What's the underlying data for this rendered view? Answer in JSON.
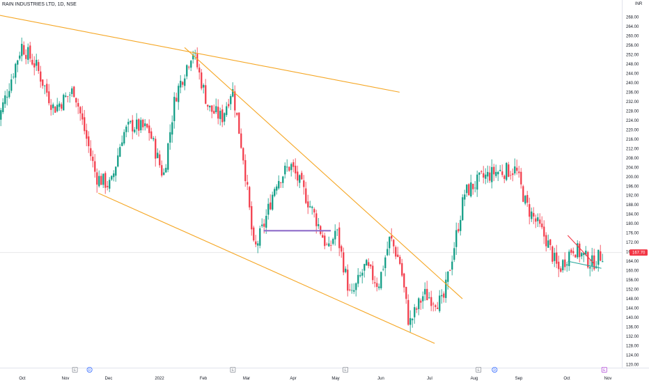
{
  "header": {
    "title": "RAIN INDUSTRIES LTD, 1D, NSE"
  },
  "currency_label": "INR",
  "colors": {
    "up": "#089981",
    "down": "#f23645",
    "trendline": "#f5a623",
    "support": "#8e6cc9",
    "axis_text": "#131722",
    "price_line": "#f23645",
    "marker_border": "#8a8f98",
    "dividend_marker": "#2962ff",
    "current_earnings_marker": "#b04ad6"
  },
  "chart_data": {
    "type": "candlestick",
    "title": "RAIN INDUSTRIES LTD, 1D, NSE",
    "ylim": [
      118,
      272
    ],
    "y_ticks": [
      120,
      124,
      128,
      132,
      136,
      140,
      144,
      148,
      152,
      156,
      160,
      164,
      168,
      172,
      176,
      180,
      184,
      188,
      192,
      196,
      200,
      204,
      208,
      212,
      216,
      220,
      224,
      228,
      232,
      236,
      240,
      244,
      248,
      252,
      256,
      260,
      264,
      268
    ],
    "x_labels": [
      "Oct",
      "Nov",
      "Dec",
      "2022",
      "Feb",
      "Mar",
      "Apr",
      "May",
      "Jun",
      "Jul",
      "Aug",
      "Sep",
      "Oct",
      "Nov"
    ],
    "current_price": 167.7,
    "current_price_label": "167.70",
    "series": [
      {
        "x": "2021-09-13",
        "y": 222
      },
      {
        "x": "2021-09-30",
        "y": 256
      },
      {
        "x": "2021-10-10",
        "y": 247
      },
      {
        "x": "2021-10-22",
        "y": 229
      },
      {
        "x": "2021-11-05",
        "y": 237
      },
      {
        "x": "2021-11-20",
        "y": 200
      },
      {
        "x": "2021-11-30",
        "y": 196
      },
      {
        "x": "2021-12-08",
        "y": 218
      },
      {
        "x": "2021-12-14",
        "y": 222
      },
      {
        "x": "2021-12-26",
        "y": 220
      },
      {
        "x": "2022-01-05",
        "y": 200
      },
      {
        "x": "2022-01-13",
        "y": 234
      },
      {
        "x": "2022-01-25",
        "y": 254
      },
      {
        "x": "2022-02-05",
        "y": 229
      },
      {
        "x": "2022-02-14",
        "y": 225
      },
      {
        "x": "2022-02-21",
        "y": 238
      },
      {
        "x": "2022-03-01",
        "y": 207
      },
      {
        "x": "2022-03-08",
        "y": 168
      },
      {
        "x": "2022-03-15",
        "y": 180
      },
      {
        "x": "2022-03-23",
        "y": 198
      },
      {
        "x": "2022-04-02",
        "y": 205
      },
      {
        "x": "2022-04-10",
        "y": 195
      },
      {
        "x": "2022-04-20",
        "y": 181
      },
      {
        "x": "2022-04-28",
        "y": 168
      },
      {
        "x": "2022-05-03",
        "y": 178
      },
      {
        "x": "2022-05-13",
        "y": 148
      },
      {
        "x": "2022-05-23",
        "y": 162
      },
      {
        "x": "2022-06-01",
        "y": 154
      },
      {
        "x": "2022-06-09",
        "y": 174
      },
      {
        "x": "2022-06-16",
        "y": 163
      },
      {
        "x": "2022-06-22",
        "y": 137
      },
      {
        "x": "2022-07-02",
        "y": 150
      },
      {
        "x": "2022-07-15",
        "y": 146
      },
      {
        "x": "2022-07-30",
        "y": 193
      },
      {
        "x": "2022-08-10",
        "y": 199
      },
      {
        "x": "2022-08-20",
        "y": 202
      },
      {
        "x": "2022-09-03",
        "y": 203
      },
      {
        "x": "2022-09-10",
        "y": 188
      },
      {
        "x": "2022-09-24",
        "y": 173
      },
      {
        "x": "2022-10-02",
        "y": 160
      },
      {
        "x": "2022-10-12",
        "y": 170
      },
      {
        "x": "2022-10-25",
        "y": 163
      },
      {
        "x": "2022-11-02",
        "y": 167.7
      }
    ],
    "trendlines": [
      {
        "name": "upper-channel",
        "from": {
          "x": "2021-09-05",
          "y": 270
        },
        "to": {
          "x": "2022-06-16",
          "y": 236
        }
      },
      {
        "name": "lower-channel",
        "from": {
          "x": "2021-11-22",
          "y": 193
        },
        "to": {
          "x": "2022-07-10",
          "y": 129
        }
      },
      {
        "name": "falling-resistance",
        "from": {
          "x": "2022-01-20",
          "y": 255
        },
        "to": {
          "x": "2022-07-29",
          "y": 148
        }
      },
      {
        "name": "oct-triangle-top",
        "from": {
          "x": "2022-10-09",
          "y": 175
        },
        "to": {
          "x": "2022-10-27",
          "y": 163
        }
      },
      {
        "name": "oct-triangle-bottom",
        "from": {
          "x": "2022-10-09",
          "y": 164
        },
        "to": {
          "x": "2022-11-01",
          "y": 161
        }
      }
    ],
    "support_line": {
      "from": "2022-03-15",
      "to": "2022-04-30",
      "y": 177
    },
    "event_markers": [
      {
        "x": "2021-11-06",
        "label": "E",
        "kind": "earnings"
      },
      {
        "x": "2021-11-16",
        "label": "D",
        "kind": "dividend"
      },
      {
        "x": "2022-02-22",
        "label": "E",
        "kind": "earnings"
      },
      {
        "x": "2022-05-10",
        "label": "E",
        "kind": "earnings"
      },
      {
        "x": "2022-08-09",
        "label": "E",
        "kind": "earnings"
      },
      {
        "x": "2022-08-20",
        "label": "D",
        "kind": "dividend"
      },
      {
        "x": "2022-11-03",
        "label": "E",
        "kind": "earnings-upcoming"
      }
    ]
  }
}
